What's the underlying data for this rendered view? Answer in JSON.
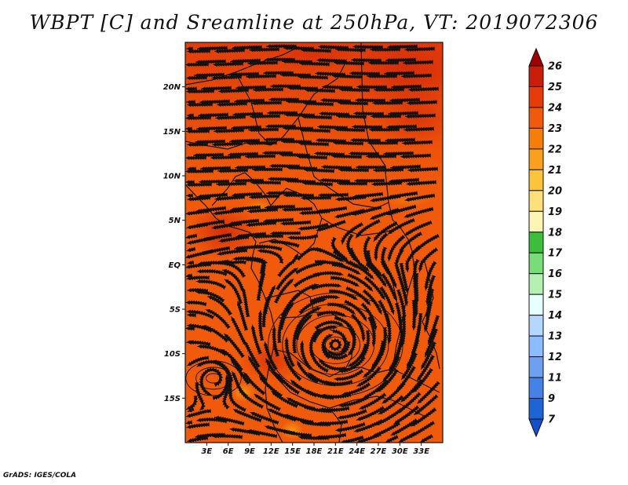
{
  "title": "WBPT [C] and Sreamline at 250hPa, VT: 2019072306",
  "credit": "GrADS: IGES/COLA",
  "map": {
    "lon_range": [
      0,
      36
    ],
    "lat_range": [
      -20,
      25
    ],
    "lon_ticks": [
      {
        "value": 3,
        "label": "3E"
      },
      {
        "value": 6,
        "label": "6E"
      },
      {
        "value": 9,
        "label": "9E"
      },
      {
        "value": 12,
        "label": "12E"
      },
      {
        "value": 15,
        "label": "15E"
      },
      {
        "value": 18,
        "label": "18E"
      },
      {
        "value": 21,
        "label": "21E"
      },
      {
        "value": 24,
        "label": "24E"
      },
      {
        "value": 27,
        "label": "27E"
      },
      {
        "value": 30,
        "label": "30E"
      },
      {
        "value": 33,
        "label": "33E"
      }
    ],
    "lat_ticks": [
      {
        "value": 20,
        "label": "20N"
      },
      {
        "value": 15,
        "label": "15N"
      },
      {
        "value": 10,
        "label": "10N"
      },
      {
        "value": 5,
        "label": "5N"
      },
      {
        "value": 0,
        "label": "EQ"
      },
      {
        "value": -5,
        "label": "5S"
      },
      {
        "value": -10,
        "label": "10S"
      },
      {
        "value": -15,
        "label": "15S"
      }
    ],
    "base_fill_color": "#f05a0a",
    "vortex_center": {
      "lon": 21,
      "lat": -9
    }
  },
  "colorbar": {
    "levels": [
      {
        "label": "26",
        "color": "#a00000"
      },
      {
        "label": "25",
        "color": "#c81e0a"
      },
      {
        "label": "24",
        "color": "#e63c0a"
      },
      {
        "label": "23",
        "color": "#f05a0a"
      },
      {
        "label": "22",
        "color": "#f57d0a"
      },
      {
        "label": "21",
        "color": "#f9a01e"
      },
      {
        "label": "20",
        "color": "#fcc33c"
      },
      {
        "label": "19",
        "color": "#fde07a"
      },
      {
        "label": "18",
        "color": "#fdf5b4"
      },
      {
        "label": "17",
        "color": "#3cbe3c"
      },
      {
        "label": "16",
        "color": "#78dc78"
      },
      {
        "label": "15",
        "color": "#b4f0b4"
      },
      {
        "label": "14",
        "color": "#e6ffff"
      },
      {
        "label": "13",
        "color": "#b4d7ff"
      },
      {
        "label": "12",
        "color": "#8cbcff"
      },
      {
        "label": "11",
        "color": "#6ea0f0"
      },
      {
        "label": "9",
        "color": "#4682e6"
      },
      {
        "label": "7",
        "color": "#1e64d2"
      },
      {
        "label": "",
        "color": "#1450c8"
      }
    ]
  }
}
